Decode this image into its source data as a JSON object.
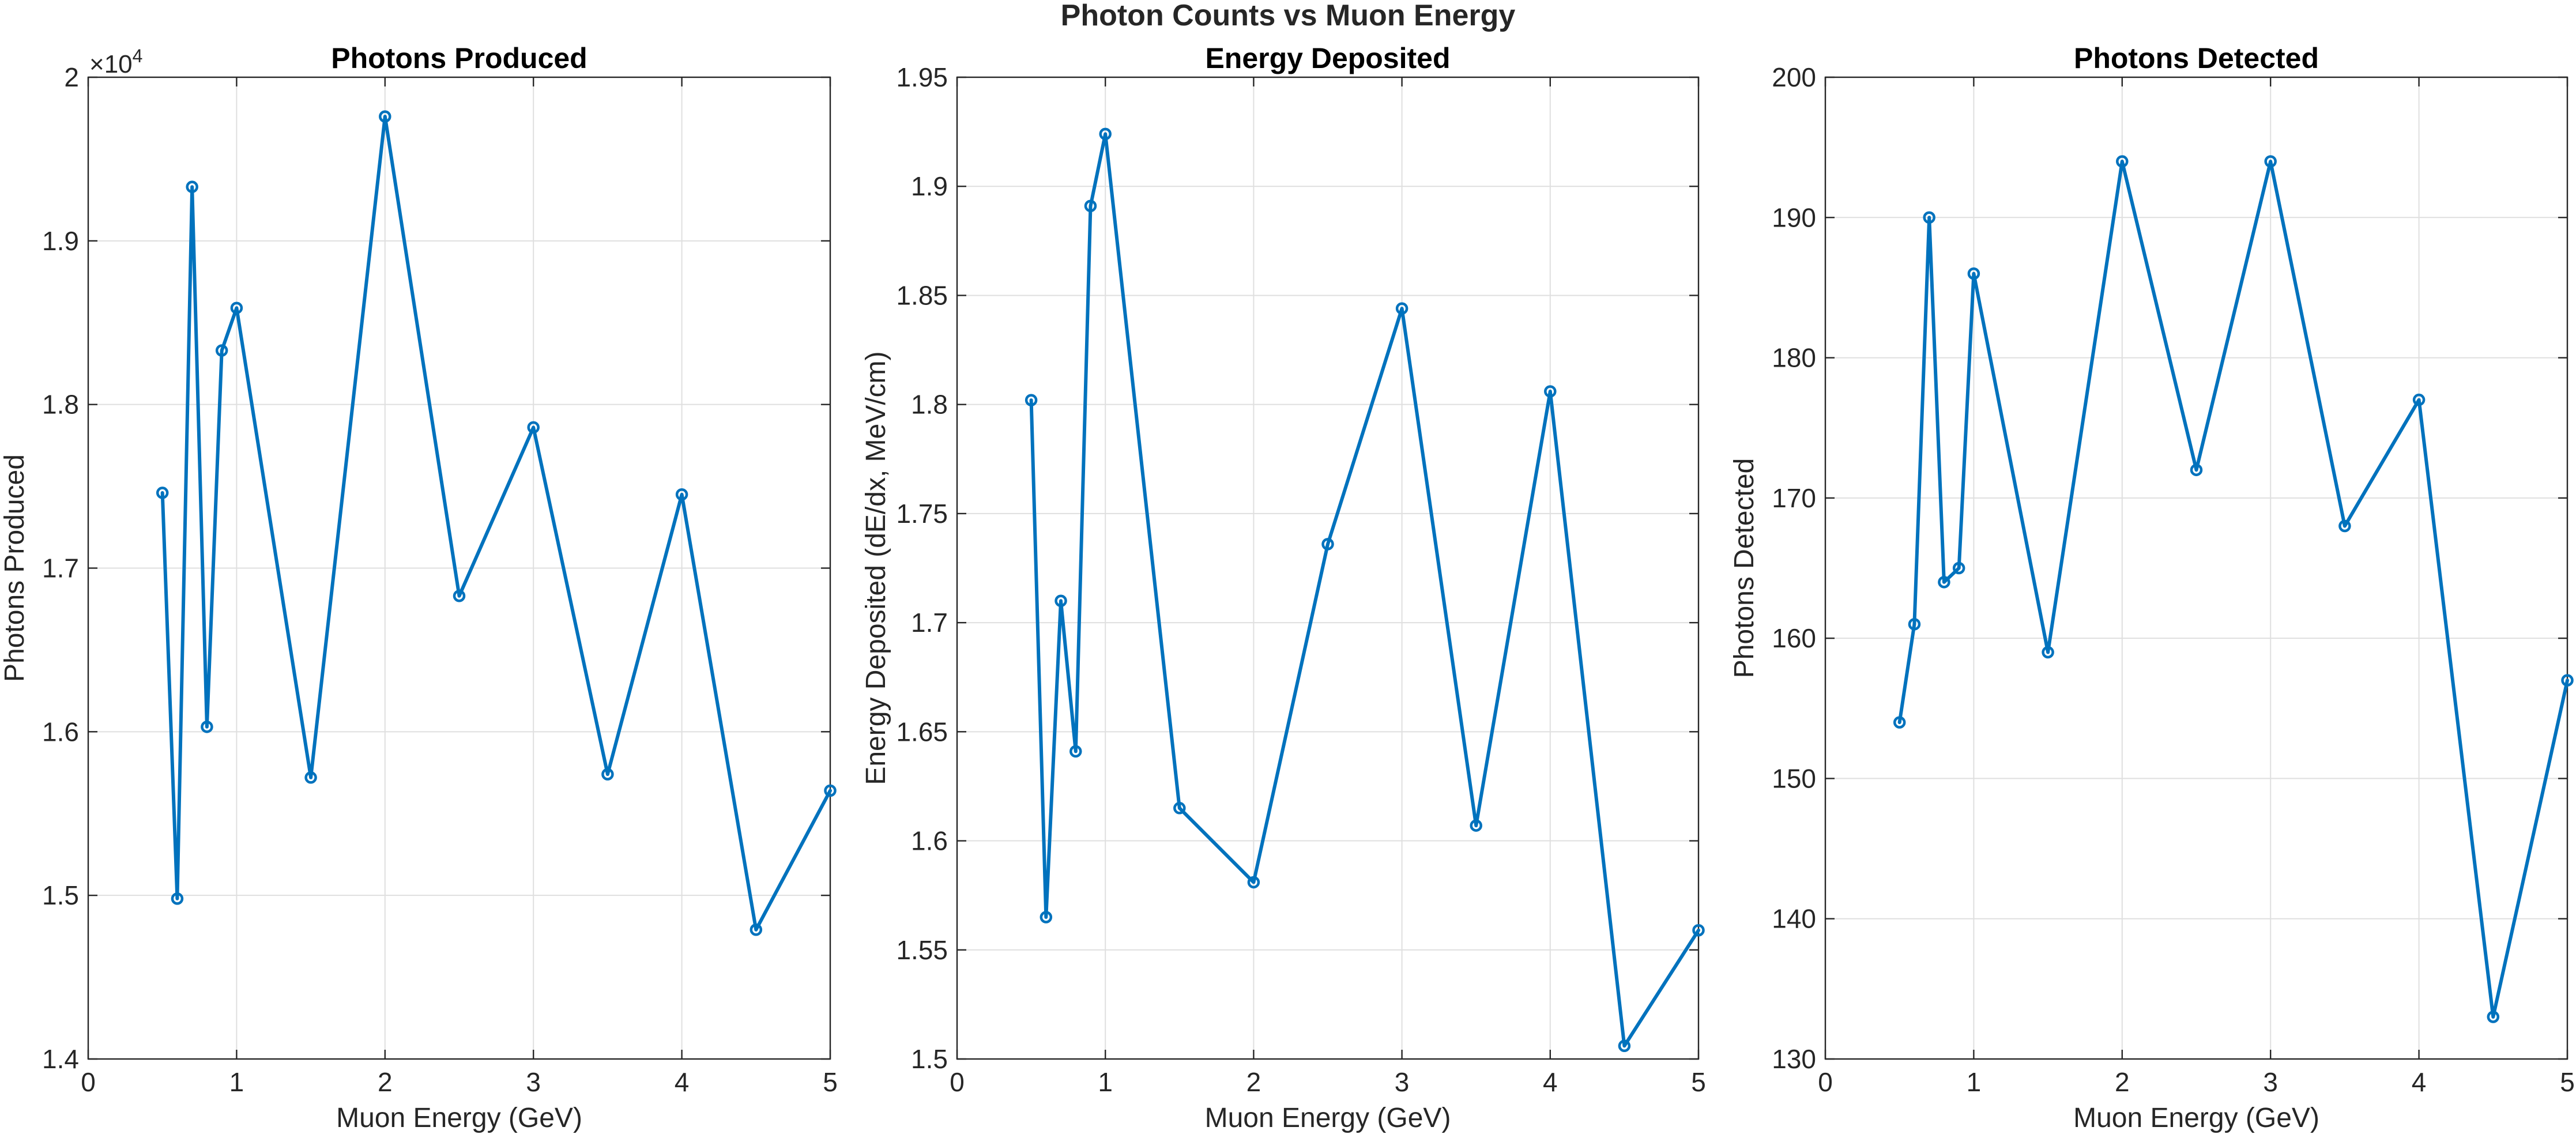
{
  "figure": {
    "title": "Photon Counts vs Muon Energy",
    "series_color": "#0072BD"
  },
  "chart_data": [
    {
      "type": "line",
      "title": "Photons Produced",
      "xlabel": "Muon Energy (GeV)",
      "ylabel": "Photons Produced",
      "exponent_label": "×10^4",
      "y_scale_factor": 10000,
      "x": [
        0.5,
        0.6,
        0.7,
        0.8,
        0.9,
        1.0,
        1.5,
        2.0,
        2.5,
        3.0,
        3.5,
        4.0,
        4.5,
        5.0
      ],
      "values": [
        17460,
        14980,
        19330,
        16030,
        18330,
        18590,
        15720,
        19760,
        16830,
        17860,
        15740,
        17450,
        14790,
        15640
      ],
      "xlim": [
        0,
        5
      ],
      "ylim": [
        14000,
        20000
      ],
      "xticks": [
        0,
        1,
        2,
        3,
        4,
        5
      ],
      "xtick_labels": [
        "0",
        "1",
        "2",
        "3",
        "4",
        "5"
      ],
      "yticks": [
        14000,
        15000,
        16000,
        17000,
        18000,
        19000,
        20000
      ],
      "ytick_labels": [
        "1.4",
        "1.5",
        "1.6",
        "1.7",
        "1.8",
        "1.9",
        "2"
      ],
      "grid": true,
      "marker": "circle"
    },
    {
      "type": "line",
      "title": "Energy Deposited",
      "xlabel": "Muon Energy (GeV)",
      "ylabel": "Energy Deposited (dE/dx, MeV/cm)",
      "x": [
        0.5,
        0.6,
        0.7,
        0.8,
        0.9,
        1.0,
        1.5,
        2.0,
        2.5,
        3.0,
        3.5,
        4.0,
        4.5,
        5.0
      ],
      "values": [
        1.802,
        1.565,
        1.71,
        1.641,
        1.891,
        1.924,
        1.615,
        1.581,
        1.736,
        1.844,
        1.607,
        1.806,
        1.506,
        1.559
      ],
      "xlim": [
        0,
        5
      ],
      "ylim": [
        1.5,
        1.95
      ],
      "xticks": [
        0,
        1,
        2,
        3,
        4,
        5
      ],
      "xtick_labels": [
        "0",
        "1",
        "2",
        "3",
        "4",
        "5"
      ],
      "yticks": [
        1.5,
        1.55,
        1.6,
        1.65,
        1.7,
        1.75,
        1.8,
        1.85,
        1.9,
        1.95
      ],
      "ytick_labels": [
        "1.5",
        "1.55",
        "1.6",
        "1.65",
        "1.7",
        "1.75",
        "1.8",
        "1.85",
        "1.9",
        "1.95"
      ],
      "grid": true,
      "marker": "circle"
    },
    {
      "type": "line",
      "title": "Photons Detected",
      "xlabel": "Muon Energy (GeV)",
      "ylabel": "Photons Detected",
      "x": [
        0.5,
        0.6,
        0.7,
        0.8,
        0.9,
        1.0,
        1.5,
        2.0,
        2.5,
        3.0,
        3.5,
        4.0,
        4.5,
        5.0
      ],
      "values": [
        154,
        161,
        190,
        164,
        165,
        186,
        159,
        194,
        172,
        194,
        168,
        177,
        133,
        157
      ],
      "xlim": [
        0,
        5
      ],
      "ylim": [
        130,
        200
      ],
      "xticks": [
        0,
        1,
        2,
        3,
        4,
        5
      ],
      "xtick_labels": [
        "0",
        "1",
        "2",
        "3",
        "4",
        "5"
      ],
      "yticks": [
        130,
        140,
        150,
        160,
        170,
        180,
        190,
        200
      ],
      "ytick_labels": [
        "130",
        "140",
        "150",
        "160",
        "170",
        "180",
        "190",
        "200"
      ],
      "grid": true,
      "marker": "circle"
    }
  ]
}
